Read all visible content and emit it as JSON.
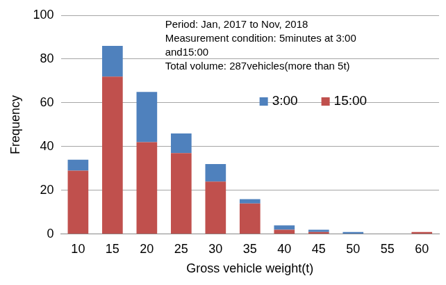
{
  "chart_data": {
    "type": "bar",
    "x_label": "Gross vehicle weight(t)",
    "y_label": "Frequency",
    "categories": [
      "10",
      "15",
      "20",
      "25",
      "30",
      "35",
      "40",
      "45",
      "50",
      "55",
      "60"
    ],
    "series": [
      {
        "name": "15:00",
        "color": "#c0504d",
        "values": [
          29,
          72,
          42,
          37,
          24,
          14,
          2,
          1,
          0,
          0,
          1
        ]
      },
      {
        "name": "3:00",
        "color": "#4f81bd",
        "values": [
          5,
          14,
          23,
          9,
          8,
          2,
          2,
          1,
          1,
          0,
          0
        ]
      }
    ],
    "stacked": true,
    "ylim": [
      0,
      100
    ],
    "yticks": [
      0,
      20,
      40,
      60,
      80,
      100
    ],
    "grid": true,
    "legend": "upper right",
    "annotations": [
      "Period: Jan, 2017 to Nov, 2018",
      "Measurement condition: 5minutes at 3:00",
      "and15:00",
      "Total volume: 287vehicles(more than 5t)"
    ]
  }
}
